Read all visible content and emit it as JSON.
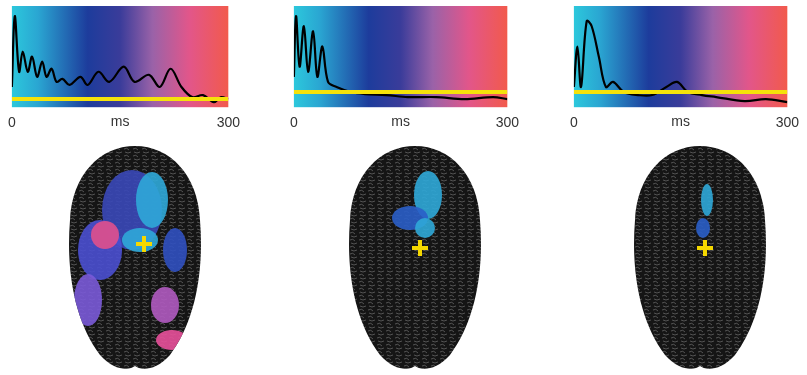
{
  "chart_data": [
    {
      "type": "line",
      "xlabel": "ms",
      "xlim": [
        0,
        300
      ],
      "xticks": [
        0,
        300
      ],
      "ylim": [
        0,
        1
      ],
      "tick_labels": "x",
      "color": "#000000",
      "threshold": 0.08,
      "x": [
        0,
        4,
        10,
        15,
        22,
        28,
        35,
        42,
        48,
        55,
        62,
        70,
        80,
        95,
        105,
        120,
        135,
        155,
        170,
        190,
        205,
        220,
        235,
        250,
        265,
        280,
        290,
        300
      ],
      "values": [
        0.2,
        0.9,
        0.35,
        0.55,
        0.35,
        0.5,
        0.3,
        0.45,
        0.3,
        0.38,
        0.25,
        0.28,
        0.22,
        0.3,
        0.22,
        0.35,
        0.25,
        0.4,
        0.25,
        0.32,
        0.2,
        0.38,
        0.2,
        0.1,
        0.12,
        0.05,
        0.1,
        0.08
      ]
    },
    {
      "type": "line",
      "xlabel": "ms",
      "xlim": [
        0,
        300
      ],
      "xticks": [
        0,
        300
      ],
      "ylim": [
        0,
        1
      ],
      "tick_labels": "x",
      "color": "#000000",
      "threshold": 0.15,
      "x": [
        0,
        3,
        8,
        14,
        20,
        27,
        33,
        40,
        48,
        60,
        80,
        100,
        130,
        160,
        200,
        240,
        280,
        300
      ],
      "values": [
        0.3,
        0.9,
        0.4,
        0.8,
        0.35,
        0.75,
        0.3,
        0.6,
        0.25,
        0.2,
        0.15,
        0.13,
        0.12,
        0.1,
        0.1,
        0.08,
        0.1,
        0.08
      ]
    },
    {
      "type": "line",
      "xlabel": "ms",
      "xlim": [
        0,
        300
      ],
      "xticks": [
        0,
        300
      ],
      "ylim": [
        0,
        1
      ],
      "tick_labels": "x",
      "color": "#000000",
      "threshold": 0.15,
      "x": [
        0,
        5,
        10,
        18,
        25,
        35,
        45,
        55,
        70,
        90,
        110,
        130,
        145,
        160,
        180,
        200,
        240,
        270,
        300
      ],
      "values": [
        0.2,
        0.6,
        0.2,
        0.85,
        0.8,
        0.5,
        0.2,
        0.25,
        0.15,
        0.12,
        0.12,
        0.2,
        0.25,
        0.15,
        0.12,
        0.1,
        0.06,
        0.08,
        0.05
      ]
    }
  ]
}
